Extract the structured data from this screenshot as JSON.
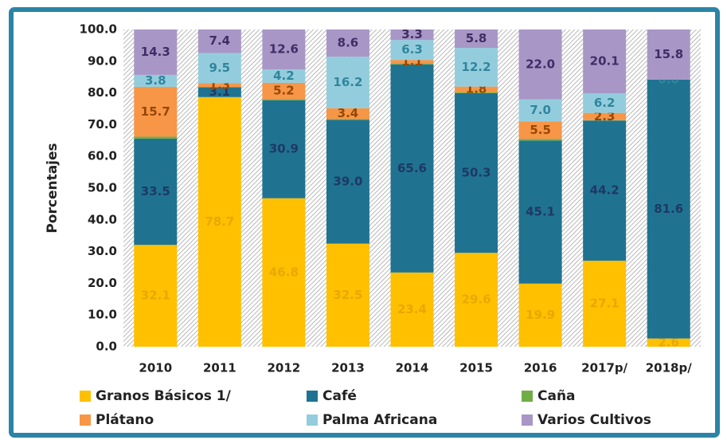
{
  "chart_data": {
    "type": "stacked_bar",
    "y_label": "Porcentajes",
    "categories": [
      "2010",
      "2011",
      "2012",
      "2013",
      "2014",
      "2015",
      "2016",
      "2017p/",
      "2018p/"
    ],
    "series": [
      {
        "name": "Granos Básicos 1/",
        "color": "#FFC000",
        "label_color": "#E8A800",
        "values": [
          32.1,
          78.7,
          46.8,
          32.5,
          23.4,
          29.6,
          19.9,
          27.1,
          2.6
        ],
        "value_labels": [
          "32.1",
          "78.7",
          "46.8",
          "32.5",
          "23.4",
          "29.6",
          "19.9",
          "27.1",
          "2.6"
        ]
      },
      {
        "name": "Café",
        "color": "#1F7391",
        "label_color": "#1F3864",
        "values": [
          33.5,
          3.1,
          30.9,
          39.0,
          65.6,
          50.3,
          45.1,
          44.2,
          81.6
        ],
        "value_labels": [
          "33.5",
          "3.1",
          "30.9",
          "39.0",
          "65.6",
          "50.3",
          "45.1",
          "44.2",
          "81.6"
        ]
      },
      {
        "name": "Caña",
        "color": "#70AD47",
        "label_color": "#375623",
        "values": [
          0.6,
          0,
          0.3,
          0.3,
          0.3,
          0.3,
          0.5,
          0.1,
          0
        ],
        "value_labels": [
          null,
          null,
          null,
          null,
          null,
          null,
          null,
          null,
          null
        ]
      },
      {
        "name": "Plátano",
        "color": "#F79646",
        "label_color": "#974706",
        "values": [
          15.7,
          1.3,
          5.2,
          3.4,
          1.1,
          1.8,
          5.5,
          2.3,
          0
        ],
        "value_labels": [
          "15.7",
          "1.3",
          "5.2",
          "3.4",
          "1.1",
          "1.8",
          "5.5",
          "2.3",
          null
        ]
      },
      {
        "name": "Palma Africana",
        "color": "#93CDDD",
        "label_color": "#31859C",
        "values": [
          3.8,
          9.5,
          4.2,
          16.2,
          6.3,
          12.2,
          7.0,
          6.2,
          0.0
        ],
        "value_labels": [
          "3.8",
          "9.5",
          "4.2",
          "16.2",
          "6.3",
          "12.2",
          "7.0",
          "6.2",
          "0.0"
        ]
      },
      {
        "name": "Varios Cultivos",
        "color": "#A897C6",
        "label_color": "#3F2D66",
        "values": [
          14.3,
          7.4,
          12.6,
          8.6,
          3.3,
          5.8,
          22.0,
          20.1,
          15.8
        ],
        "value_labels": [
          "14.3",
          "7.4",
          "12.6",
          "8.6",
          "3.3",
          "5.8",
          "22.0",
          "20.1",
          "15.8"
        ]
      }
    ],
    "ylim": [
      0,
      100
    ],
    "yticks": [
      {
        "value": 0,
        "label": "0.0"
      },
      {
        "value": 10,
        "label": "10.0"
      },
      {
        "value": 20,
        "label": "20.0"
      },
      {
        "value": 30,
        "label": "30.0"
      },
      {
        "value": 40,
        "label": "40.0"
      },
      {
        "value": 50,
        "label": "50.0"
      },
      {
        "value": 60,
        "label": "60.0"
      },
      {
        "value": 70,
        "label": "70.0"
      },
      {
        "value": 80,
        "label": "80.0"
      },
      {
        "value": 90,
        "label": "90.0"
      },
      {
        "value": 100,
        "label": "100.0"
      }
    ],
    "legend": "bottom"
  }
}
